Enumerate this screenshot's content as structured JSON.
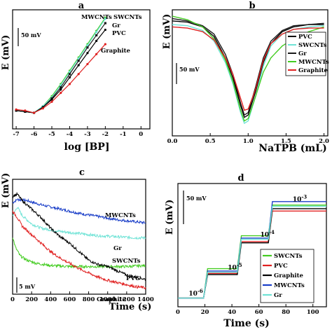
{
  "colors": {
    "PVC": "#000000",
    "SWCNTs": "#6fe3d6",
    "Gr": "#1a1a1a",
    "MWCNTs": "#44cc22",
    "Graphite": "#e02020",
    "Blue": "#1a3ec8"
  },
  "chart_data": [
    {
      "panel": "a",
      "type": "line",
      "xlabel": "log [BP]",
      "ylabel": "E (mV)",
      "xlim": [
        -7.2,
        0.5
      ],
      "xticks": [
        "-7",
        "-6",
        "-5",
        "-4",
        "-3",
        "-2",
        "-1",
        "0"
      ],
      "scale_bar": "50 mV",
      "labels": [
        "MWCNTs",
        "SWCNTs",
        "Gr",
        "PVC",
        "Graphite"
      ],
      "series": [
        {
          "name": "MWCNTs",
          "x": [
            -7,
            -6.5,
            -6,
            -5.5,
            -5,
            -4.5,
            -4,
            -3.5,
            -3,
            -2.5,
            -2
          ],
          "y": [
            0.14,
            0.13,
            0.12,
            0.18,
            0.27,
            0.38,
            0.5,
            0.62,
            0.74,
            0.86,
            0.98
          ]
        },
        {
          "name": "SWCNTs",
          "x": [
            -7,
            -6.5,
            -6,
            -5.5,
            -5,
            -4.5,
            -4,
            -3.5,
            -3,
            -2.5,
            -2
          ],
          "y": [
            0.14,
            0.13,
            0.12,
            0.18,
            0.26,
            0.37,
            0.49,
            0.61,
            0.73,
            0.85,
            0.97
          ]
        },
        {
          "name": "Gr",
          "x": [
            -7,
            -6.5,
            -6,
            -5.5,
            -5,
            -4.5,
            -4,
            -3.5,
            -3,
            -2.5,
            -2
          ],
          "y": [
            0.14,
            0.13,
            0.12,
            0.17,
            0.25,
            0.35,
            0.47,
            0.59,
            0.71,
            0.82,
            0.93
          ]
        },
        {
          "name": "PVC",
          "x": [
            -7,
            -6.5,
            -6,
            -5.5,
            -5,
            -4.5,
            -4,
            -3.5,
            -3,
            -2.5,
            -2
          ],
          "y": [
            0.14,
            0.13,
            0.12,
            0.17,
            0.24,
            0.33,
            0.44,
            0.55,
            0.66,
            0.77,
            0.87
          ]
        },
        {
          "name": "Graphite",
          "x": [
            -7,
            -6.5,
            -6,
            -5.5,
            -5,
            -4.5,
            -4,
            -3.5,
            -3,
            -2.5,
            -2
          ],
          "y": [
            0.15,
            0.14,
            0.12,
            0.16,
            0.22,
            0.3,
            0.38,
            0.47,
            0.56,
            0.65,
            0.74
          ]
        }
      ]
    },
    {
      "panel": "b",
      "type": "line",
      "xlabel": "NaTPB (mL)",
      "ylabel": "E (mV)",
      "xlim": [
        0,
        2.05
      ],
      "xticks": [
        "0.0",
        "0.5",
        "1.0",
        "1.5",
        "2.0"
      ],
      "scale_bar": "50 mV",
      "legend": [
        "PVC",
        "SWCNTs",
        "Gr",
        "MWCNTs",
        "Graphite"
      ],
      "series": [
        {
          "name": "PVC",
          "x": [
            0,
            0.2,
            0.4,
            0.55,
            0.7,
            0.8,
            0.9,
            0.95,
            1.0,
            1.1,
            1.2,
            1.3,
            1.45,
            1.6,
            1.8,
            2.0
          ],
          "y": [
            0.93,
            0.92,
            0.88,
            0.8,
            0.62,
            0.45,
            0.22,
            0.12,
            0.14,
            0.34,
            0.58,
            0.74,
            0.84,
            0.88,
            0.9,
            0.9
          ]
        },
        {
          "name": "SWCNTs",
          "x": [
            0,
            0.2,
            0.4,
            0.55,
            0.7,
            0.8,
            0.9,
            0.95,
            1.0,
            1.1,
            1.2,
            1.3,
            1.45,
            1.6,
            1.8,
            2.0
          ],
          "y": [
            0.9,
            0.89,
            0.85,
            0.76,
            0.58,
            0.4,
            0.16,
            0.07,
            0.09,
            0.3,
            0.55,
            0.72,
            0.82,
            0.86,
            0.88,
            0.89
          ]
        },
        {
          "name": "Gr",
          "x": [
            0,
            0.2,
            0.4,
            0.55,
            0.7,
            0.8,
            0.9,
            0.95,
            1.0,
            1.1,
            1.2,
            1.3,
            1.45,
            1.6,
            1.8,
            2.0
          ],
          "y": [
            0.95,
            0.93,
            0.89,
            0.82,
            0.65,
            0.48,
            0.24,
            0.14,
            0.16,
            0.38,
            0.62,
            0.76,
            0.85,
            0.89,
            0.9,
            0.91
          ]
        },
        {
          "name": "MWCNTs",
          "x": [
            0,
            0.2,
            0.4,
            0.55,
            0.7,
            0.8,
            0.9,
            0.95,
            1.0,
            1.1,
            1.2,
            1.3,
            1.45,
            1.6,
            1.8,
            2.0
          ],
          "y": [
            0.97,
            0.94,
            0.88,
            0.78,
            0.6,
            0.42,
            0.18,
            0.09,
            0.11,
            0.3,
            0.5,
            0.62,
            0.72,
            0.78,
            0.84,
            0.88
          ]
        },
        {
          "name": "Graphite",
          "x": [
            0,
            0.2,
            0.4,
            0.55,
            0.7,
            0.8,
            0.9,
            0.95,
            1.0,
            1.1,
            1.2,
            1.3,
            1.45,
            1.6,
            1.8,
            2.0
          ],
          "y": [
            0.88,
            0.87,
            0.84,
            0.77,
            0.62,
            0.48,
            0.28,
            0.18,
            0.19,
            0.36,
            0.6,
            0.74,
            0.82,
            0.86,
            0.87,
            0.87
          ]
        }
      ]
    },
    {
      "panel": "c",
      "type": "line",
      "xlabel": "Time (s)",
      "ylabel": "E (mV)",
      "xlim": [
        0,
        1400
      ],
      "xticks": [
        "0",
        "200",
        "400",
        "600",
        "800",
        "1000",
        "1200",
        "1400"
      ],
      "scale_bar": "5 mV",
      "labels": [
        "MWCNTs",
        "Gr",
        "SWCNTs",
        "PVC",
        "Graphite"
      ],
      "series": [
        {
          "name": "MWCNTs",
          "color": "Blue",
          "x": [
            0,
            50,
            150,
            300,
            500,
            700,
            900,
            1100,
            1300,
            1400
          ],
          "y": [
            0.82,
            0.85,
            0.84,
            0.8,
            0.76,
            0.72,
            0.69,
            0.66,
            0.64,
            0.63
          ]
        },
        {
          "name": "Gr",
          "color": "SWCNTs",
          "x": [
            0,
            50,
            100,
            200,
            300,
            500,
            700,
            900,
            1100,
            1300,
            1400
          ],
          "y": [
            0.7,
            0.78,
            0.7,
            0.62,
            0.58,
            0.55,
            0.53,
            0.51,
            0.5,
            0.49,
            0.49
          ]
        },
        {
          "name": "SWCNTs",
          "color": "MWCNTs",
          "x": [
            0,
            30,
            80,
            150,
            250,
            400,
            600,
            800,
            1000,
            1200,
            1400
          ],
          "y": [
            0.5,
            0.4,
            0.32,
            0.28,
            0.25,
            0.23,
            0.22,
            0.22,
            0.22,
            0.22,
            0.23
          ]
        },
        {
          "name": "PVC",
          "color": "PVC",
          "x": [
            0,
            50,
            100,
            200,
            300,
            400,
            500,
            600,
            700,
            800,
            900,
            1000,
            1100,
            1200,
            1300,
            1400
          ],
          "y": [
            0.88,
            0.9,
            0.84,
            0.76,
            0.68,
            0.58,
            0.5,
            0.44,
            0.36,
            0.28,
            0.24,
            0.22,
            0.18,
            0.14,
            0.12,
            0.1
          ]
        },
        {
          "name": "Graphite",
          "color": "Graphite",
          "x": [
            0,
            50,
            100,
            200,
            300,
            400,
            500,
            600,
            700,
            800,
            900,
            1000,
            1100,
            1200,
            1300,
            1400
          ],
          "y": [
            0.74,
            0.68,
            0.6,
            0.52,
            0.44,
            0.36,
            0.3,
            0.25,
            0.2,
            0.16,
            0.12,
            0.09,
            0.07,
            0.05,
            0.03,
            0.02
          ]
        }
      ]
    },
    {
      "panel": "d",
      "type": "line",
      "xlabel": "Time (s)",
      "ylabel": "E (mV)",
      "xlim": [
        0,
        110
      ],
      "xticks": [
        "0",
        "20",
        "40",
        "60",
        "80",
        "100"
      ],
      "scale_bar": "50 mV",
      "annotations": [
        {
          "base": "10",
          "exp": "-6",
          "x": 8,
          "y": 0.06
        },
        {
          "base": "10",
          "exp": "-5",
          "x": 37,
          "y": 0.28
        },
        {
          "base": "10",
          "exp": "-4",
          "x": 61,
          "y": 0.56
        },
        {
          "base": "10",
          "exp": "-3",
          "x": 85,
          "y": 0.86
        }
      ],
      "legend": [
        "SWCNTs",
        "PVC",
        "Graphite",
        "MWCNTs",
        "Gr"
      ],
      "series": [
        {
          "name": "SWCNTs",
          "color": "MWCNTs",
          "steps": [
            [
              0,
              0.05
            ],
            [
              19,
              0.05
            ],
            [
              22,
              0.3
            ],
            [
              44,
              0.3
            ],
            [
              47,
              0.58
            ],
            [
              67,
              0.58
            ],
            [
              70,
              0.84
            ],
            [
              110,
              0.84
            ]
          ]
        },
        {
          "name": "PVC",
          "color": "Graphite",
          "steps": [
            [
              0,
              0.05
            ],
            [
              19,
              0.05
            ],
            [
              22,
              0.26
            ],
            [
              44,
              0.26
            ],
            [
              47,
              0.53
            ],
            [
              67,
              0.53
            ],
            [
              70,
              0.79
            ],
            [
              110,
              0.79
            ]
          ]
        },
        {
          "name": "Graphite",
          "color": "PVC",
          "steps": [
            [
              0,
              0.05
            ],
            [
              19,
              0.05
            ],
            [
              22,
              0.25
            ],
            [
              44,
              0.25
            ],
            [
              47,
              0.52
            ],
            [
              67,
              0.52
            ],
            [
              70,
              0.81
            ],
            [
              110,
              0.81
            ]
          ]
        },
        {
          "name": "MWCNTs",
          "color": "Blue",
          "steps": [
            [
              0,
              0.05
            ],
            [
              19,
              0.05
            ],
            [
              22,
              0.28
            ],
            [
              44,
              0.28
            ],
            [
              47,
              0.56
            ],
            [
              67,
              0.56
            ],
            [
              70,
              0.87
            ],
            [
              110,
              0.87
            ]
          ]
        },
        {
          "name": "Gr",
          "color": "SWCNTs",
          "steps": [
            [
              0,
              0.05
            ],
            [
              19,
              0.05
            ],
            [
              22,
              0.27
            ],
            [
              44,
              0.27
            ],
            [
              47,
              0.55
            ],
            [
              67,
              0.55
            ],
            [
              70,
              0.83
            ],
            [
              110,
              0.83
            ]
          ]
        }
      ]
    }
  ]
}
